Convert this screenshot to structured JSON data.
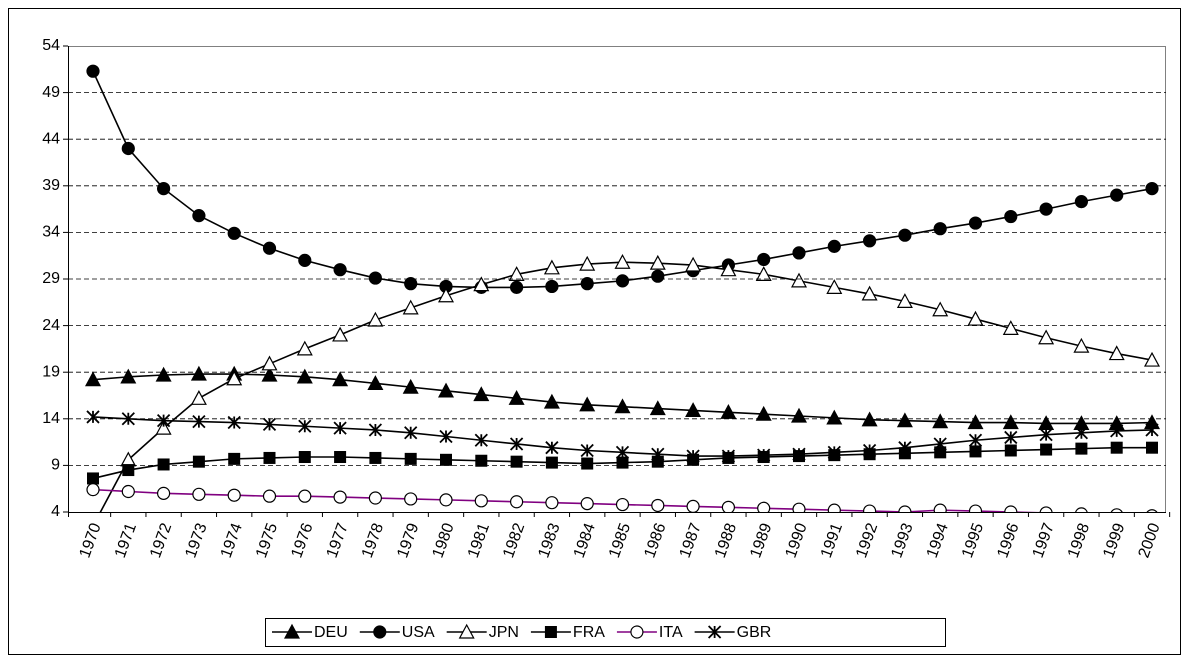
{
  "chart_data": {
    "type": "line",
    "categories": [
      "1970",
      "1971",
      "1972",
      "1973",
      "1974",
      "1975",
      "1976",
      "1977",
      "1978",
      "1979",
      "1980",
      "1981",
      "1982",
      "1983",
      "1984",
      "1985",
      "1986",
      "1987",
      "1988",
      "1989",
      "1990",
      "1991",
      "1992",
      "1993",
      "1994",
      "1995",
      "1996",
      "1997",
      "1998",
      "1999",
      "2000"
    ],
    "ylim": [
      4,
      54
    ],
    "yticks": [
      4,
      9,
      14,
      19,
      24,
      29,
      34,
      39,
      44,
      49,
      54
    ],
    "grid": true,
    "legend": "bottom",
    "series": [
      {
        "name": "DEU",
        "color": "#000000",
        "marker": "triangle",
        "values": [
          18.2,
          18.5,
          18.7,
          18.8,
          18.8,
          18.7,
          18.5,
          18.2,
          17.8,
          17.4,
          17.0,
          16.6,
          16.2,
          15.8,
          15.5,
          15.3,
          15.1,
          14.9,
          14.7,
          14.5,
          14.3,
          14.1,
          13.9,
          13.8,
          13.7,
          13.6,
          13.6,
          13.5,
          13.5,
          13.5,
          13.6
        ]
      },
      {
        "name": "USA",
        "color": "#000000",
        "marker": "circle",
        "values": [
          51.3,
          43.0,
          38.7,
          35.8,
          33.9,
          32.3,
          31.0,
          30.0,
          29.1,
          28.5,
          28.2,
          28.1,
          28.1,
          28.2,
          28.5,
          28.8,
          29.3,
          29.9,
          30.5,
          31.1,
          31.8,
          32.5,
          33.1,
          33.7,
          34.4,
          35.0,
          35.7,
          36.5,
          37.3,
          38.0,
          38.7
        ]
      },
      {
        "name": "JPN",
        "color": "#000000",
        "marker": "triangle-open",
        "values": [
          2.5,
          9.6,
          13.0,
          16.2,
          18.3,
          19.9,
          21.5,
          23.0,
          24.6,
          25.9,
          27.2,
          28.4,
          29.5,
          30.2,
          30.6,
          30.8,
          30.7,
          30.5,
          30.0,
          29.5,
          28.8,
          28.1,
          27.4,
          26.6,
          25.7,
          24.7,
          23.7,
          22.7,
          21.8,
          21.0,
          20.3
        ]
      },
      {
        "name": "FRA",
        "color": "#000000",
        "marker": "square",
        "values": [
          7.6,
          8.5,
          9.1,
          9.4,
          9.7,
          9.8,
          9.9,
          9.9,
          9.8,
          9.7,
          9.6,
          9.5,
          9.4,
          9.3,
          9.2,
          9.3,
          9.4,
          9.6,
          9.8,
          9.9,
          10.0,
          10.1,
          10.2,
          10.3,
          10.4,
          10.5,
          10.6,
          10.7,
          10.8,
          10.9,
          10.9
        ]
      },
      {
        "name": "ITA",
        "color": "#800080",
        "marker": "circle-open",
        "values": [
          6.4,
          6.2,
          6.0,
          5.9,
          5.8,
          5.7,
          5.7,
          5.6,
          5.5,
          5.4,
          5.3,
          5.2,
          5.1,
          5.0,
          4.9,
          4.8,
          4.7,
          4.6,
          4.5,
          4.4,
          4.3,
          4.2,
          4.1,
          4.0,
          4.2,
          4.1,
          4.0,
          3.9,
          3.8,
          3.7,
          3.6
        ]
      },
      {
        "name": "GBR",
        "color": "#000000",
        "marker": "star",
        "values": [
          14.2,
          14.0,
          13.8,
          13.7,
          13.6,
          13.4,
          13.2,
          13.0,
          12.8,
          12.5,
          12.1,
          11.7,
          11.3,
          10.9,
          10.6,
          10.4,
          10.2,
          10.0,
          10.0,
          10.1,
          10.2,
          10.4,
          10.6,
          10.9,
          11.3,
          11.7,
          12.0,
          12.3,
          12.5,
          12.7,
          12.8
        ]
      }
    ]
  }
}
